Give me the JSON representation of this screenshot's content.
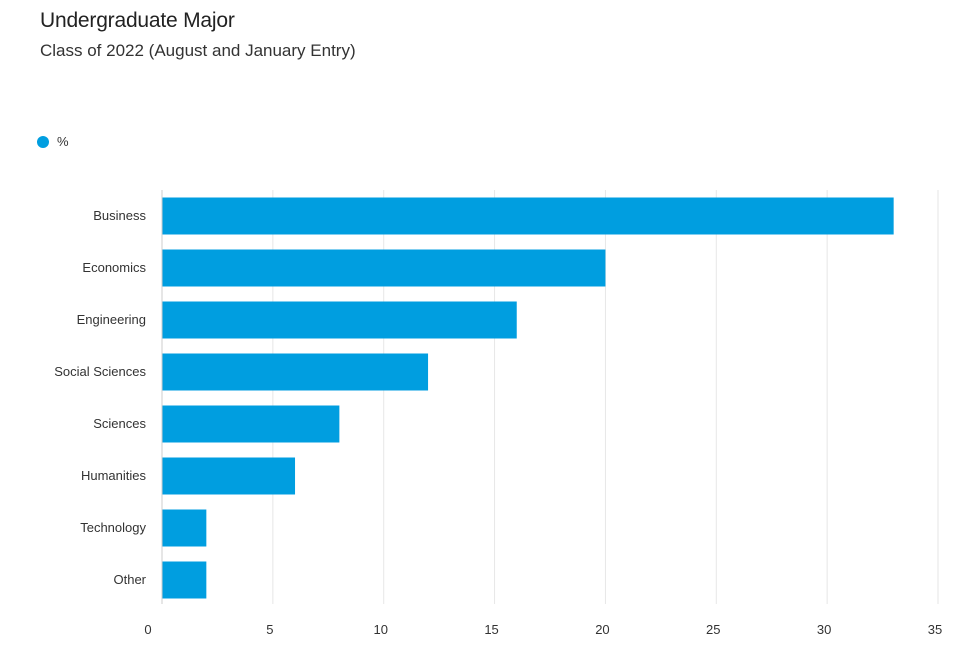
{
  "chart_data": {
    "type": "bar",
    "orientation": "horizontal",
    "title": "Undergraduate Major",
    "subtitle": "Class of 2022 (August and January Entry)",
    "xlabel": "",
    "ylabel": "",
    "categories": [
      "Business",
      "Economics",
      "Engineering",
      "Social Sciences",
      "Sciences",
      "Humanities",
      "Technology",
      "Other"
    ],
    "series": [
      {
        "name": "%",
        "values": [
          33,
          20,
          16,
          12,
          8,
          6,
          2,
          2
        ]
      }
    ],
    "xlim": [
      0,
      35
    ],
    "xticks": [
      0,
      5,
      10,
      15,
      20,
      25,
      30,
      35
    ],
    "grid": true,
    "legend_position": "top-left",
    "colors": {
      "bar": "#009ee0",
      "grid": "#e6e6e6",
      "axis": "#cccccc"
    }
  }
}
